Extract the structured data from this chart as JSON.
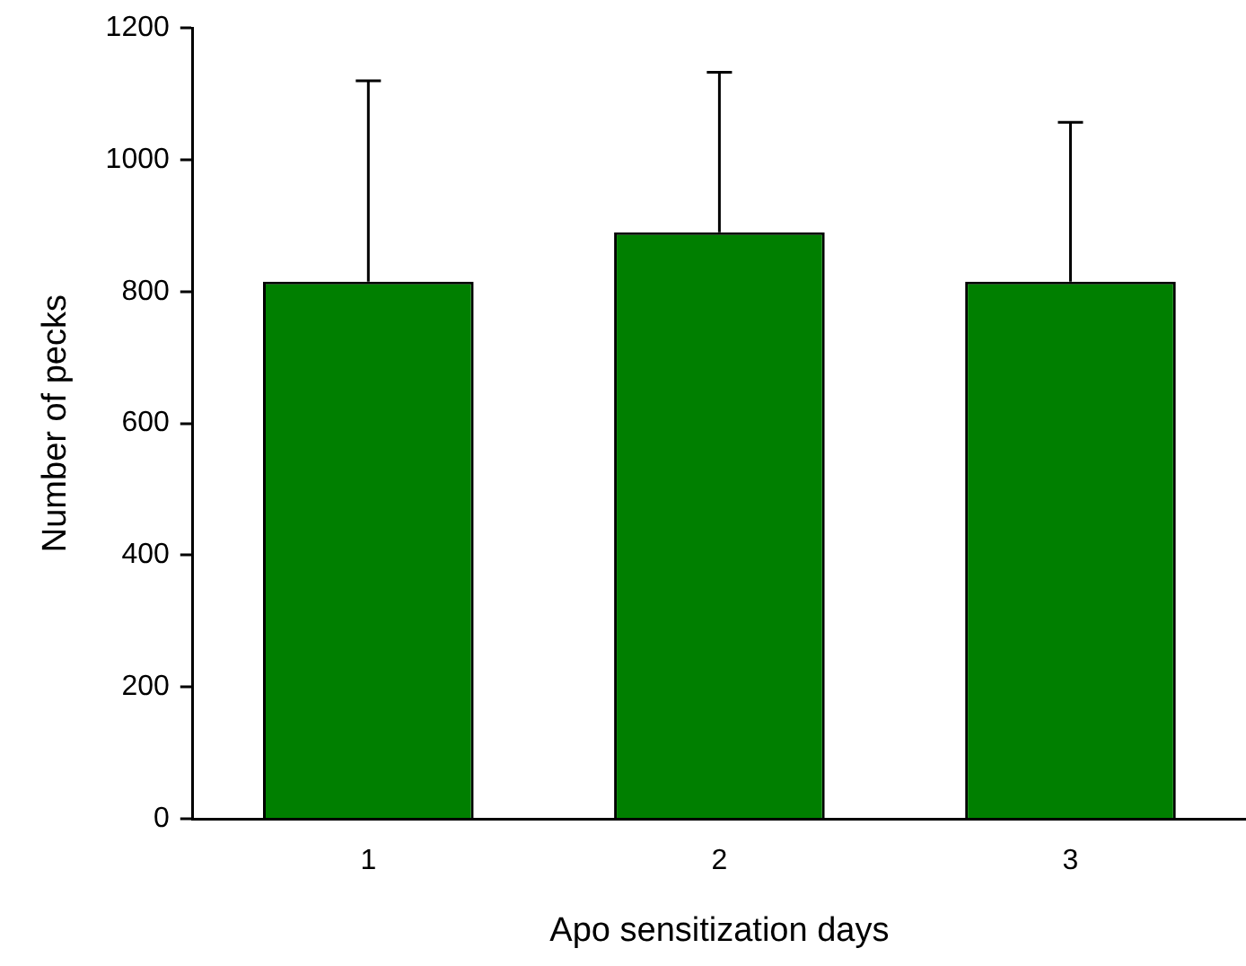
{
  "chart_data": {
    "type": "bar",
    "xlabel": "Apo sensitization days",
    "ylabel": "Number of pecks",
    "categories": [
      "1",
      "2",
      "3"
    ],
    "values": [
      815,
      890,
      815
    ],
    "errors": [
      [
        815,
        1120
      ],
      [
        890,
        1133
      ],
      [
        815,
        1057
      ]
    ],
    "color": "#007f00",
    "ylim": [
      0,
      1200
    ],
    "yticks": [
      0,
      200,
      400,
      600,
      800,
      1000,
      1200
    ],
    "grid": false,
    "legend": false
  }
}
